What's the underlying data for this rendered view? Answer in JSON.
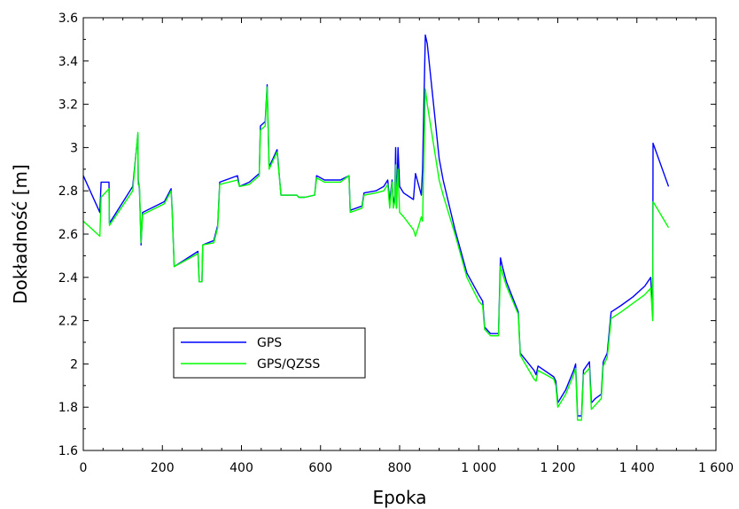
{
  "chart_data": {
    "type": "line",
    "title": "",
    "xlabel": "Epoka",
    "ylabel": "Dokładność [m]",
    "xlim": [
      0,
      1600
    ],
    "ylim": [
      1.6,
      3.6
    ],
    "xticks": [
      0,
      200,
      400,
      600,
      800,
      1000,
      1200,
      1400,
      1600
    ],
    "xtick_labels": [
      "0",
      "200",
      "400",
      "600",
      "800",
      "1 000",
      "1 200",
      "1 400",
      "1 600"
    ],
    "yticks": [
      1.6,
      1.8,
      2.0,
      2.2,
      2.4,
      2.6,
      2.8,
      3.0,
      3.2,
      3.4,
      3.6
    ],
    "ytick_labels": [
      "1.6",
      "1.8",
      "2",
      "2.2",
      "2.4",
      "2.6",
      "2.8",
      "3",
      "3.2",
      "3.4",
      "3.6"
    ],
    "grid": false,
    "legend_position": "lower-left",
    "series": [
      {
        "name": "GPS",
        "color": "#0000ff",
        "points": [
          [
            0,
            2.87
          ],
          [
            42,
            2.7
          ],
          [
            45,
            2.84
          ],
          [
            65,
            2.84
          ],
          [
            66,
            2.65
          ],
          [
            125,
            2.82
          ],
          [
            138,
            3.06
          ],
          [
            139,
            2.85
          ],
          [
            142,
            2.81
          ],
          [
            146,
            2.55
          ],
          [
            150,
            2.7
          ],
          [
            205,
            2.75
          ],
          [
            222,
            2.81
          ],
          [
            225,
            2.7
          ],
          [
            230,
            2.45
          ],
          [
            290,
            2.52
          ],
          [
            293,
            2.38
          ],
          [
            300,
            2.38
          ],
          [
            302,
            2.55
          ],
          [
            330,
            2.57
          ],
          [
            340,
            2.64
          ],
          [
            345,
            2.84
          ],
          [
            390,
            2.87
          ],
          [
            395,
            2.82
          ],
          [
            420,
            2.84
          ],
          [
            445,
            2.88
          ],
          [
            448,
            3.1
          ],
          [
            460,
            3.12
          ],
          [
            465,
            3.29
          ],
          [
            470,
            2.91
          ],
          [
            490,
            2.99
          ],
          [
            500,
            2.78
          ],
          [
            540,
            2.78
          ],
          [
            545,
            2.77
          ],
          [
            560,
            2.77
          ],
          [
            585,
            2.78
          ],
          [
            590,
            2.87
          ],
          [
            610,
            2.85
          ],
          [
            650,
            2.85
          ],
          [
            672,
            2.87
          ],
          [
            675,
            2.71
          ],
          [
            705,
            2.73
          ],
          [
            710,
            2.79
          ],
          [
            740,
            2.8
          ],
          [
            760,
            2.82
          ],
          [
            770,
            2.85
          ],
          [
            775,
            2.75
          ],
          [
            781,
            2.85
          ],
          [
            784,
            2.73
          ],
          [
            788,
            2.78
          ],
          [
            790,
            3.0
          ],
          [
            792,
            2.72
          ],
          [
            796,
            3.0
          ],
          [
            800,
            2.82
          ],
          [
            810,
            2.79
          ],
          [
            835,
            2.76
          ],
          [
            840,
            2.88
          ],
          [
            855,
            2.78
          ],
          [
            858,
            2.9
          ],
          [
            865,
            3.52
          ],
          [
            870,
            3.48
          ],
          [
            900,
            2.95
          ],
          [
            910,
            2.85
          ],
          [
            940,
            2.62
          ],
          [
            970,
            2.42
          ],
          [
            1000,
            2.32
          ],
          [
            1010,
            2.29
          ],
          [
            1015,
            2.17
          ],
          [
            1030,
            2.14
          ],
          [
            1045,
            2.14
          ],
          [
            1050,
            2.14
          ],
          [
            1055,
            2.49
          ],
          [
            1060,
            2.45
          ],
          [
            1070,
            2.38
          ],
          [
            1100,
            2.24
          ],
          [
            1105,
            2.05
          ],
          [
            1140,
            1.97
          ],
          [
            1145,
            1.95
          ],
          [
            1150,
            1.99
          ],
          [
            1190,
            1.94
          ],
          [
            1195,
            1.92
          ],
          [
            1200,
            1.82
          ],
          [
            1220,
            1.88
          ],
          [
            1240,
            1.97
          ],
          [
            1245,
            2.0
          ],
          [
            1250,
            1.76
          ],
          [
            1260,
            1.76
          ],
          [
            1265,
            1.97
          ],
          [
            1280,
            2.01
          ],
          [
            1285,
            1.82
          ],
          [
            1295,
            1.84
          ],
          [
            1310,
            1.86
          ],
          [
            1315,
            2.01
          ],
          [
            1325,
            2.05
          ],
          [
            1335,
            2.24
          ],
          [
            1360,
            2.27
          ],
          [
            1390,
            2.31
          ],
          [
            1420,
            2.36
          ],
          [
            1435,
            2.4
          ],
          [
            1440,
            2.22
          ],
          [
            1441,
            3.02
          ],
          [
            1480,
            2.82
          ]
        ]
      },
      {
        "name": "GPS/QZSS",
        "color": "#00ff00",
        "points": [
          [
            0,
            2.66
          ],
          [
            42,
            2.59
          ],
          [
            45,
            2.77
          ],
          [
            65,
            2.81
          ],
          [
            66,
            2.64
          ],
          [
            125,
            2.8
          ],
          [
            138,
            3.07
          ],
          [
            139,
            2.83
          ],
          [
            142,
            2.82
          ],
          [
            146,
            2.56
          ],
          [
            150,
            2.69
          ],
          [
            205,
            2.74
          ],
          [
            222,
            2.8
          ],
          [
            225,
            2.69
          ],
          [
            230,
            2.45
          ],
          [
            290,
            2.51
          ],
          [
            293,
            2.38
          ],
          [
            300,
            2.38
          ],
          [
            302,
            2.55
          ],
          [
            330,
            2.56
          ],
          [
            340,
            2.63
          ],
          [
            345,
            2.83
          ],
          [
            390,
            2.85
          ],
          [
            395,
            2.82
          ],
          [
            420,
            2.83
          ],
          [
            445,
            2.87
          ],
          [
            448,
            3.08
          ],
          [
            460,
            3.1
          ],
          [
            465,
            3.28
          ],
          [
            470,
            2.9
          ],
          [
            490,
            2.98
          ],
          [
            500,
            2.78
          ],
          [
            540,
            2.78
          ],
          [
            545,
            2.77
          ],
          [
            560,
            2.77
          ],
          [
            585,
            2.78
          ],
          [
            590,
            2.86
          ],
          [
            610,
            2.84
          ],
          [
            650,
            2.84
          ],
          [
            672,
            2.87
          ],
          [
            675,
            2.7
          ],
          [
            705,
            2.72
          ],
          [
            710,
            2.78
          ],
          [
            740,
            2.79
          ],
          [
            760,
            2.8
          ],
          [
            770,
            2.83
          ],
          [
            775,
            2.72
          ],
          [
            781,
            2.84
          ],
          [
            784,
            2.72
          ],
          [
            788,
            2.75
          ],
          [
            790,
            2.92
          ],
          [
            792,
            2.72
          ],
          [
            796,
            2.9
          ],
          [
            800,
            2.7
          ],
          [
            810,
            2.68
          ],
          [
            835,
            2.62
          ],
          [
            840,
            2.59
          ],
          [
            855,
            2.68
          ],
          [
            858,
            2.66
          ],
          [
            865,
            3.27
          ],
          [
            870,
            3.2
          ],
          [
            900,
            2.85
          ],
          [
            910,
            2.78
          ],
          [
            940,
            2.6
          ],
          [
            970,
            2.4
          ],
          [
            1000,
            2.29
          ],
          [
            1010,
            2.27
          ],
          [
            1015,
            2.16
          ],
          [
            1030,
            2.13
          ],
          [
            1045,
            2.13
          ],
          [
            1050,
            2.13
          ],
          [
            1055,
            2.45
          ],
          [
            1060,
            2.42
          ],
          [
            1070,
            2.36
          ],
          [
            1100,
            2.23
          ],
          [
            1105,
            2.04
          ],
          [
            1140,
            1.93
          ],
          [
            1145,
            1.92
          ],
          [
            1150,
            1.97
          ],
          [
            1190,
            1.93
          ],
          [
            1195,
            1.9
          ],
          [
            1200,
            1.8
          ],
          [
            1220,
            1.86
          ],
          [
            1240,
            1.95
          ],
          [
            1245,
            1.98
          ],
          [
            1250,
            1.74
          ],
          [
            1260,
            1.74
          ],
          [
            1265,
            1.95
          ],
          [
            1280,
            1.98
          ],
          [
            1285,
            1.79
          ],
          [
            1295,
            1.81
          ],
          [
            1310,
            1.84
          ],
          [
            1315,
            1.99
          ],
          [
            1325,
            2.03
          ],
          [
            1335,
            2.21
          ],
          [
            1360,
            2.24
          ],
          [
            1390,
            2.28
          ],
          [
            1420,
            2.32
          ],
          [
            1435,
            2.35
          ],
          [
            1440,
            2.2
          ],
          [
            1441,
            2.75
          ],
          [
            1480,
            2.63
          ]
        ]
      }
    ]
  }
}
